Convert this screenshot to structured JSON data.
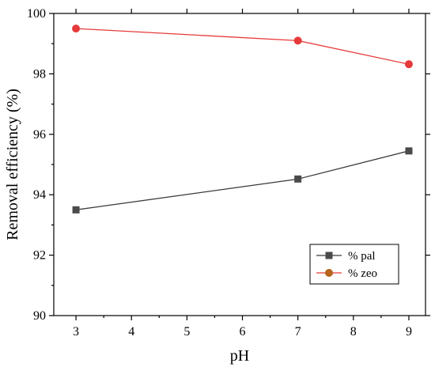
{
  "chart_data": {
    "type": "line",
    "xlabel": "pH",
    "ylabel": "Removal efficiency (%)",
    "xlim": [
      2.6,
      9.3
    ],
    "ylim": [
      90,
      100
    ],
    "x_ticks": [
      3,
      4,
      5,
      6,
      7,
      8,
      9
    ],
    "y_ticks": [
      90,
      92,
      94,
      96,
      98,
      100
    ],
    "x_tick_labels": [
      "3",
      "4",
      "5",
      "6",
      "7",
      "8",
      "9"
    ],
    "y_tick_labels": [
      "90",
      "92",
      "94",
      "96",
      "98",
      "100"
    ],
    "legend_position": "bottom-right",
    "grid": false,
    "series": [
      {
        "name": "% pal",
        "color": "#3a3a3a",
        "marker_color": "#4a4a4a",
        "marker": "square",
        "x": [
          3,
          7,
          9
        ],
        "y": [
          93.5,
          94.52,
          95.45
        ]
      },
      {
        "name": "% zeo",
        "color": "#e83a3a",
        "marker_color": "#e63a3a",
        "legend_marker_color": "#b5651d",
        "marker": "circle",
        "x": [
          3,
          7,
          9
        ],
        "y": [
          99.5,
          99.1,
          98.32
        ]
      }
    ]
  }
}
